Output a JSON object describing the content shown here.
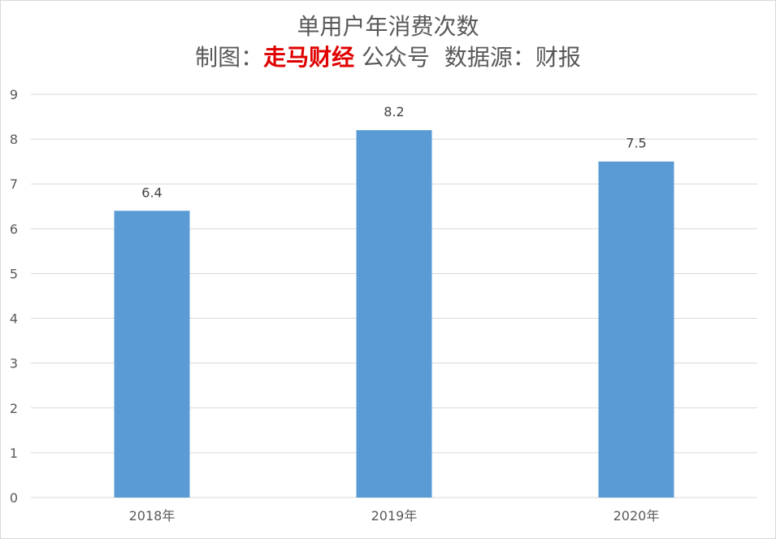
{
  "title_line1": "单用户年消费次数",
  "subtitle": {
    "prefix": "制图：",
    "brand": "走马财经",
    "suffix": " 公众号  数据源：财报",
    "brand_color": "#e00000"
  },
  "chart_data": {
    "type": "bar",
    "categories": [
      "2018年",
      "2019年",
      "2020年"
    ],
    "values": [
      6.4,
      8.2,
      7.5
    ],
    "data_labels": [
      "6.4",
      "8.2",
      "7.5"
    ],
    "yticks": [
      "0",
      "1",
      "2",
      "3",
      "4",
      "5",
      "6",
      "7",
      "8",
      "9"
    ],
    "ylim": [
      0,
      9
    ],
    "grid": true,
    "bar_color": "#5b9bd5",
    "grid_color": "#d9d9d9"
  }
}
